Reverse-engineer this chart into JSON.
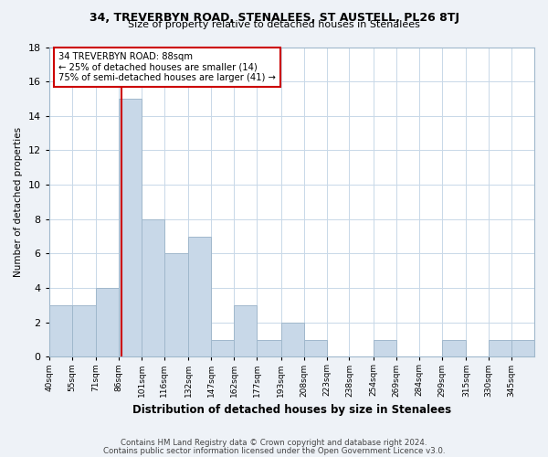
{
  "title": "34, TREVERBYN ROAD, STENALEES, ST AUSTELL, PL26 8TJ",
  "subtitle": "Size of property relative to detached houses in Stenalees",
  "xlabel": "Distribution of detached houses by size in Stenalees",
  "ylabel": "Number of detached properties",
  "bins": [
    40,
    55,
    71,
    86,
    101,
    116,
    132,
    147,
    162,
    177,
    193,
    208,
    223,
    238,
    254,
    269,
    284,
    299,
    315,
    330,
    345,
    360
  ],
  "counts": [
    3,
    3,
    4,
    15,
    8,
    6,
    7,
    1,
    3,
    1,
    2,
    1,
    0,
    0,
    1,
    0,
    0,
    1,
    0,
    1,
    1
  ],
  "tick_labels": [
    "40sqm",
    "55sqm",
    "71sqm",
    "86sqm",
    "101sqm",
    "116sqm",
    "132sqm",
    "147sqm",
    "162sqm",
    "177sqm",
    "193sqm",
    "208sqm",
    "223sqm",
    "238sqm",
    "254sqm",
    "269sqm",
    "284sqm",
    "299sqm",
    "315sqm",
    "330sqm",
    "345sqm"
  ],
  "bar_color": "#c8d8e8",
  "bar_edge_color": "#a0b8cc",
  "vline_x": 88,
  "vline_color": "#cc0000",
  "annotation_text": "34 TREVERBYN ROAD: 88sqm\n← 25% of detached houses are smaller (14)\n75% of semi-detached houses are larger (41) →",
  "annotation_box_facecolor": "#ffffff",
  "annotation_box_edgecolor": "#cc0000",
  "ylim": [
    0,
    18
  ],
  "yticks": [
    0,
    2,
    4,
    6,
    8,
    10,
    12,
    14,
    16,
    18
  ],
  "footer_line1": "Contains HM Land Registry data © Crown copyright and database right 2024.",
  "footer_line2": "Contains public sector information licensed under the Open Government Licence v3.0.",
  "bg_color": "#eef2f7",
  "plot_bg_color": "#ffffff",
  "grid_color": "#c8d8e8"
}
